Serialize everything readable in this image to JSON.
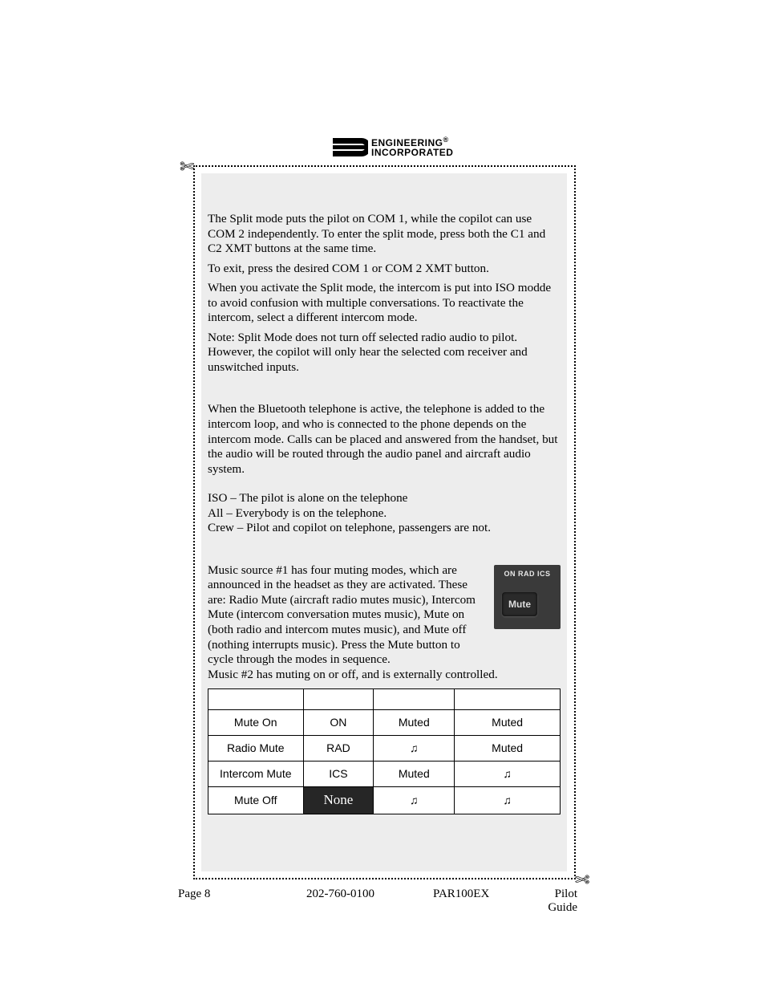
{
  "logo": {
    "line1": "ENGINEERING",
    "line2": "INCORPORATED",
    "reg": "®"
  },
  "scissors": {
    "tl": "✄",
    "br": "✄"
  },
  "body": {
    "p1a": "The Split mode puts the pilot on COM 1, while the copilot can use COM 2 independently. To enter the split mode, press both the C1 and C2 XMT buttons at the same time.",
    "p1b": "To exit, press the desired COM 1 or COM 2 XMT button.",
    "p2": "When you activate the Split mode, the intercom is put into ISO modde to avoid confusion with multiple conversations. To reactivate the intercom, select a different intercom mode.",
    "p3": "Note: Split Mode does not turn off selected radio audio to pilot. However, the copilot will only hear the selected com receiver and unswitched inputs.",
    "p4": "When the Bluetooth telephone is active, the telephone is added to the intercom loop, and who is connected to the phone depends on the intercom mode. Calls can be placed and answered from the handset, but the audio will be routed through the audio panel and aircraft audio system.",
    "p5a": "ISO – The pilot is alone on the telephone",
    "p5b": "All – Everybody is on the telephone.",
    "p5c": "Crew – Pilot and copilot on telephone, passengers are not.",
    "p6": "Music source #1 has four muting modes, which are announced in the headset as they are activated. These are: Radio Mute (aircraft radio mutes music), Intercom Mute (intercom conversation mutes music), Mute on (both radio and intercom mutes music), and Mute off (nothing interrupts music). Press the Mute button to cycle through the modes in sequence.",
    "p7": "Music #2 has muting on or off, and is externally controlled."
  },
  "mute_button": {
    "top": "ON  RAD  ICS",
    "label": "Mute"
  },
  "table": {
    "headers": [
      "",
      "",
      "",
      ""
    ],
    "rows": [
      [
        "Mute On",
        "ON",
        "Muted",
        "Muted"
      ],
      [
        "Radio Mute",
        "RAD",
        "♫",
        "Muted"
      ],
      [
        "Intercom Mute",
        "ICS",
        "Muted",
        "♫"
      ],
      [
        "Mute Off",
        "None",
        "♫",
        "♫"
      ]
    ],
    "none_dark": true,
    "col_widths": [
      "27%",
      "20%",
      "23%",
      "30%"
    ]
  },
  "footer": {
    "page": "Page 8",
    "phone": "202-760-0100",
    "model": "PAR100EX",
    "doc": "Pilot Guide"
  }
}
